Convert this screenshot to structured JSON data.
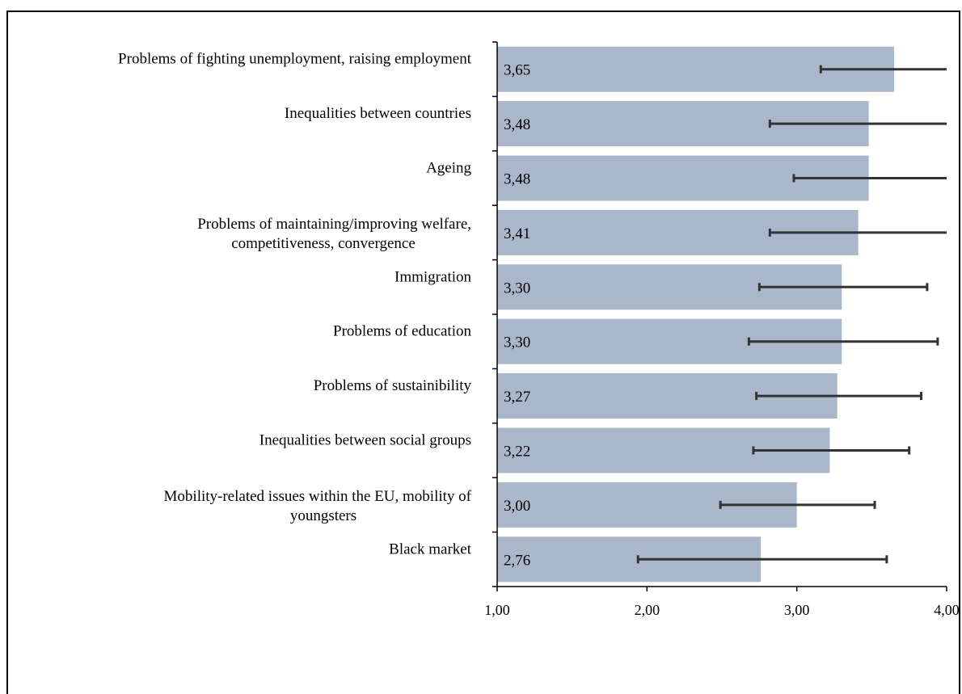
{
  "chart_data": {
    "type": "bar",
    "orientation": "horizontal",
    "categories": [
      [
        "Problems of fighting unemployment, raising employment"
      ],
      [
        "Inequalities between countries"
      ],
      [
        "Ageing"
      ],
      [
        "Problems of maintaining/improving welfare,",
        "competitiveness, convergence"
      ],
      [
        "Immigration"
      ],
      [
        "Problems of education"
      ],
      [
        "Problems of sustainibility"
      ],
      [
        "Inequalities between social groups"
      ],
      [
        "Mobility-related issues within the EU, mobility of",
        "youngsters"
      ],
      [
        "Black market"
      ]
    ],
    "values": [
      3.65,
      3.48,
      3.48,
      3.41,
      3.3,
      3.3,
      3.27,
      3.22,
      3.0,
      2.76
    ],
    "value_labels": [
      "3,65",
      "3,48",
      "3,48",
      "3,41",
      "3,30",
      "3,30",
      "3,27",
      "3,22",
      "3,00",
      "2,76"
    ],
    "error_low": [
      3.16,
      2.82,
      2.98,
      2.82,
      2.75,
      2.68,
      2.73,
      2.71,
      2.49,
      1.94
    ],
    "error_high": [
      4.0,
      4.0,
      4.0,
      4.0,
      3.87,
      3.94,
      3.83,
      3.75,
      3.52,
      3.6
    ],
    "xlim": [
      1.0,
      4.0
    ],
    "xticks": [
      1.0,
      2.0,
      3.0,
      4.0
    ],
    "xtick_labels": [
      "1,00",
      "2,00",
      "3,00",
      "4,00"
    ],
    "title": "",
    "xlabel": "",
    "ylabel": "",
    "bar_color": "#aab6c9",
    "error_color": "#333333",
    "grid": false,
    "legend": "none"
  }
}
